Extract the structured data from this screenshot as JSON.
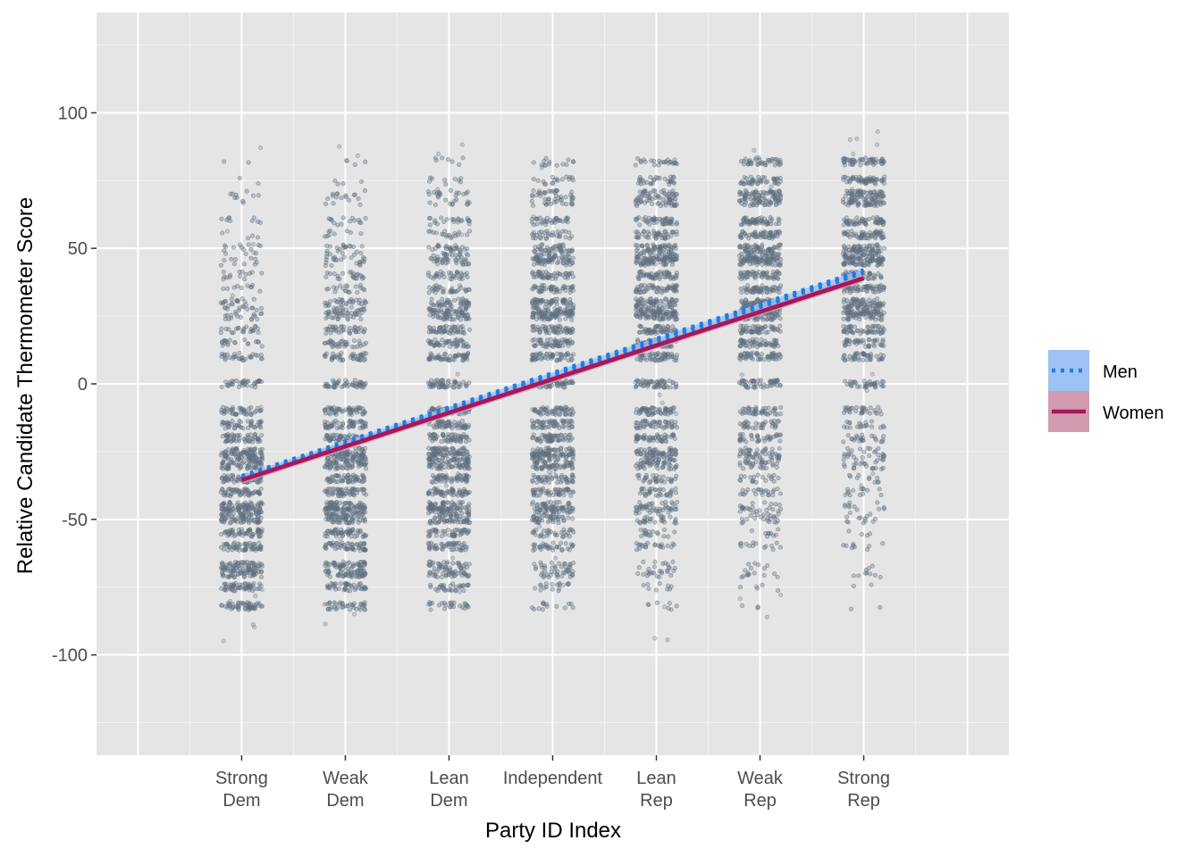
{
  "chart_data": {
    "type": "scatter",
    "xlabel": "Party ID Index",
    "ylabel": "Relative Candidate Thermometer Score",
    "categories": [
      [
        "Strong",
        "Dem"
      ],
      [
        "Weak",
        "Dem"
      ],
      [
        "Lean",
        "Dem"
      ],
      [
        "Independent"
      ],
      [
        "Lean",
        "Rep"
      ],
      [
        "Weak",
        "Rep"
      ],
      [
        "Strong",
        "Rep"
      ]
    ],
    "xlim": [
      -0.4,
      8.4
    ],
    "ylim": [
      -137,
      137
    ],
    "yticks": [
      -100,
      -50,
      0,
      50,
      100
    ],
    "ytick_labels": [
      "-100",
      "-50",
      "0",
      "50",
      "100"
    ],
    "grid": true,
    "points": {
      "color": "#5f6f80",
      "score_levels": [
        -82,
        -75,
        -70,
        -67,
        -60,
        -55,
        -50,
        -47,
        -45,
        -40,
        -35,
        -30,
        -27,
        -25,
        -20,
        -15,
        -10,
        0,
        10,
        15,
        20,
        25,
        27,
        30,
        35,
        40,
        45,
        47,
        50,
        55,
        60,
        67,
        70,
        75,
        82
      ],
      "jitter_width": 0.2
    },
    "series": [
      {
        "name": "Men",
        "style": "dotted",
        "color": "#1f7be8",
        "ribbon_color": "#9dc2f5",
        "x": [
          1,
          7
        ],
        "y": [
          -35,
          41
        ]
      },
      {
        "name": "Women",
        "style": "solid",
        "color": "#a3195b",
        "ribbon_color": "#d29bb0",
        "x": [
          1,
          7
        ],
        "y": [
          -35.5,
          39
        ]
      }
    ],
    "legend": {
      "placement": "right"
    }
  }
}
